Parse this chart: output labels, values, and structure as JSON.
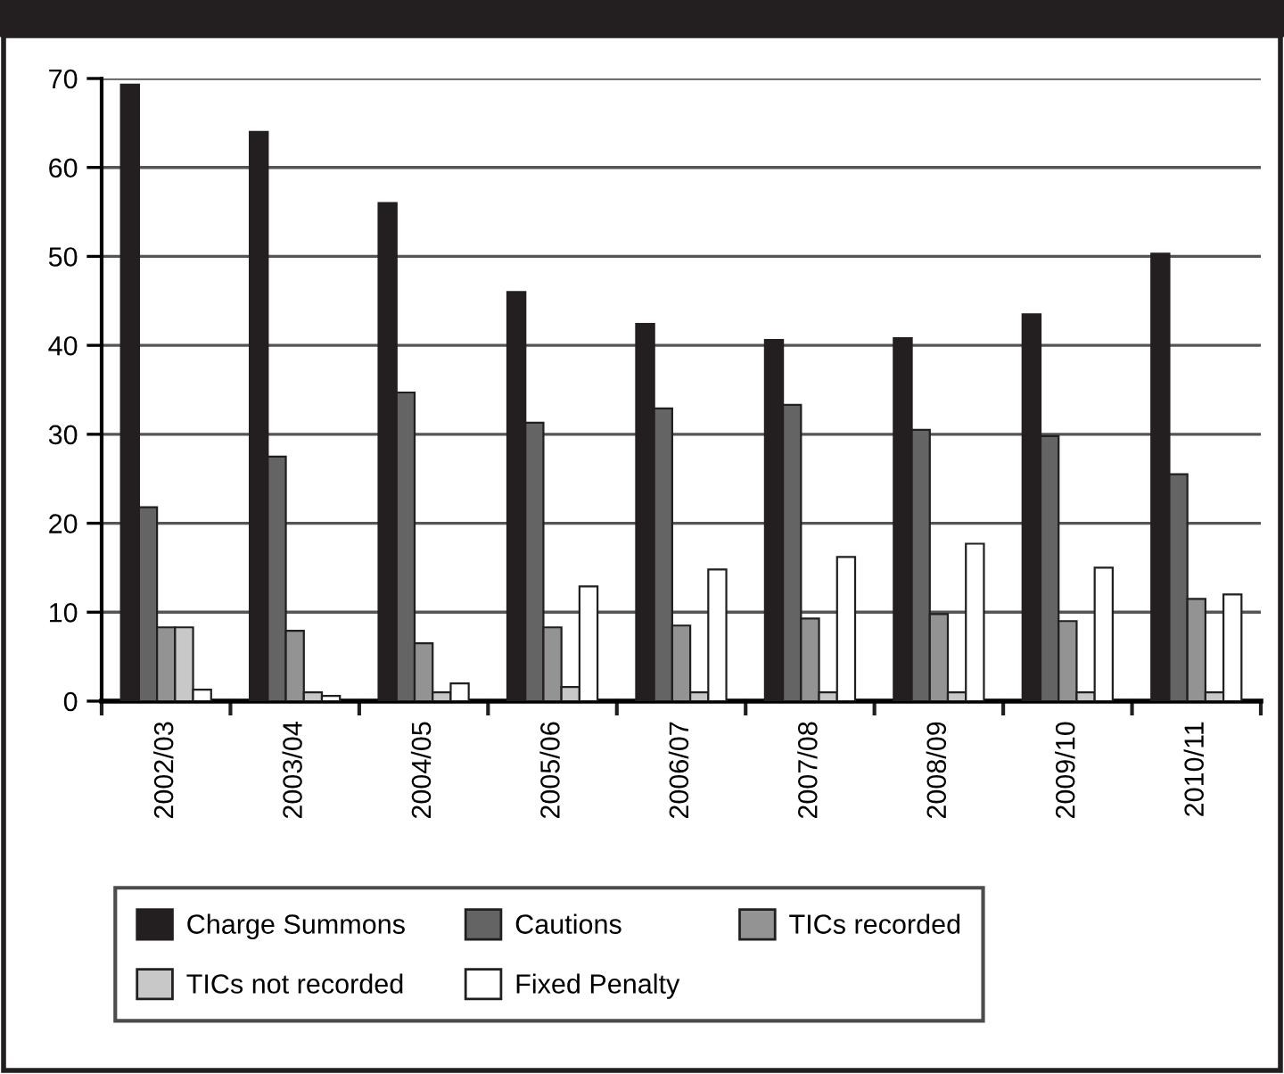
{
  "chart_data": {
    "type": "bar",
    "categories": [
      "2002/03",
      "2003/04",
      "2004/05",
      "2005/06",
      "2006/07",
      "2007/08",
      "2008/09",
      "2009/10",
      "2010/11"
    ],
    "series": [
      {
        "name": "Charge Summons",
        "color": "#231f20",
        "values": [
          69.3,
          64,
          56,
          46,
          42.4,
          40.6,
          40.8,
          43.5,
          50.3
        ]
      },
      {
        "name": "Cautions",
        "color": "#646464",
        "values": [
          21.8,
          27.5,
          34.7,
          31.3,
          32.9,
          33.3,
          30.5,
          29.8,
          25.5
        ]
      },
      {
        "name": "TICs recorded",
        "color": "#939393",
        "values": [
          8.3,
          7.9,
          6.5,
          8.3,
          8.5,
          9.3,
          9.8,
          9.0,
          11.5
        ]
      },
      {
        "name": "TICs not recorded",
        "color": "#c8c8c8",
        "values": [
          8.3,
          1.0,
          1.0,
          1.6,
          1.0,
          1.0,
          1.0,
          1.0,
          1.0
        ]
      },
      {
        "name": "Fixed Penalty",
        "color": "#ffffff",
        "values": [
          1.3,
          0.6,
          2.0,
          12.9,
          14.8,
          16.2,
          17.7,
          15.0,
          12.0
        ]
      }
    ],
    "ylim": [
      0,
      70
    ],
    "yticks": [
      0,
      10,
      20,
      30,
      40,
      50,
      60,
      70
    ],
    "grid": "y",
    "legend": "bottom"
  }
}
